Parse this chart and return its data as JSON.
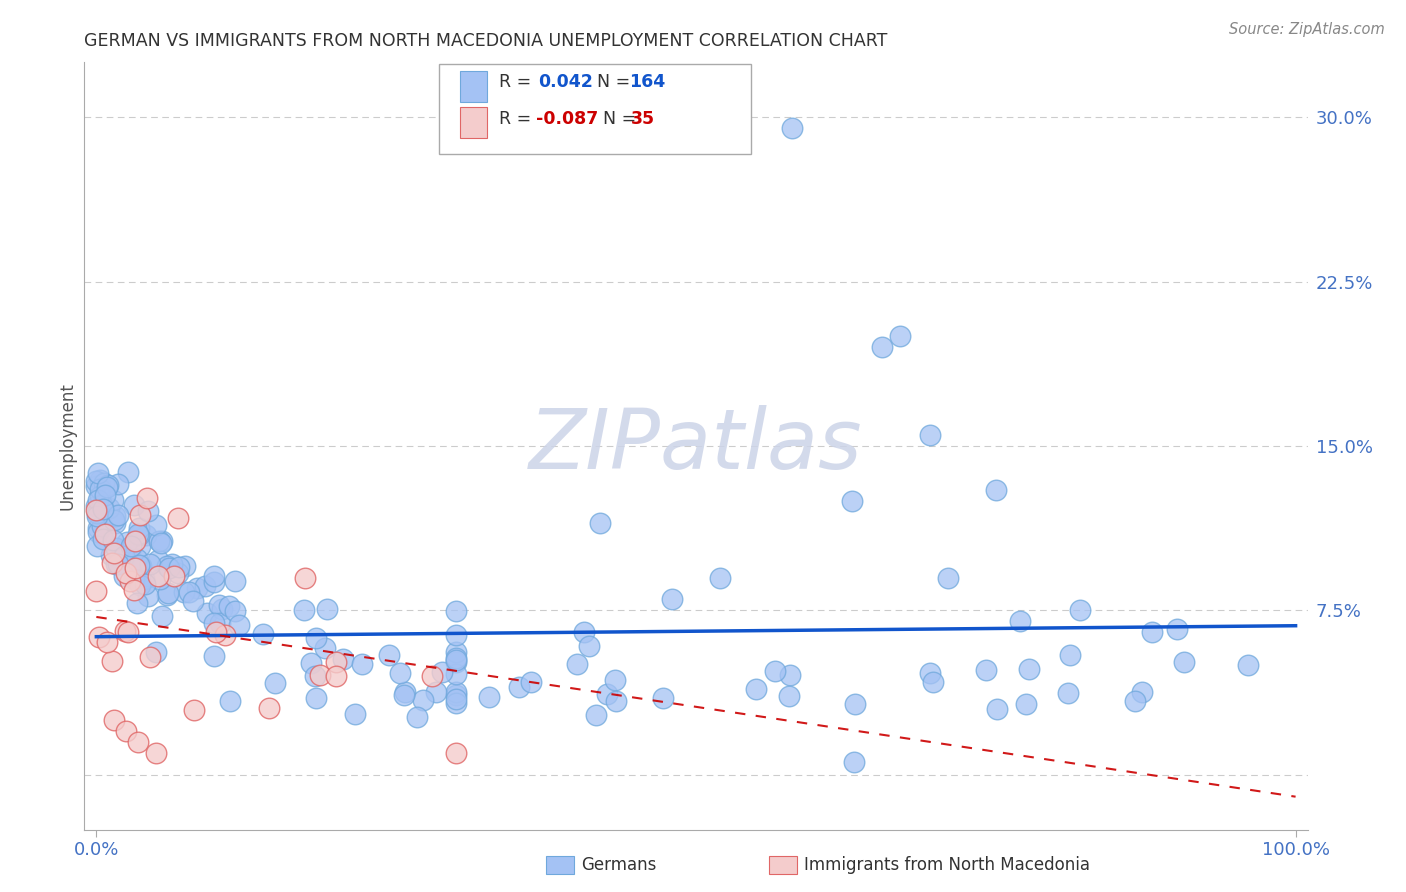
{
  "title": "GERMAN VS IMMIGRANTS FROM NORTH MACEDONIA UNEMPLOYMENT CORRELATION CHART",
  "source": "Source: ZipAtlas.com",
  "ylabel": "Unemployment",
  "xlim": [
    -0.01,
    1.01
  ],
  "ylim": [
    -0.025,
    0.325
  ],
  "yticks": [
    0.0,
    0.075,
    0.15,
    0.225,
    0.3
  ],
  "ytick_labels": [
    "",
    "7.5%",
    "15.0%",
    "22.5%",
    "30.0%"
  ],
  "xtick_positions": [
    0.0,
    1.0
  ],
  "xtick_labels": [
    "0.0%",
    "100.0%"
  ],
  "background_color": "#ffffff",
  "grid_color": "#cccccc",
  "title_color": "#444444",
  "axis_label_color": "#666666",
  "blue_color": "#a4c2f4",
  "blue_edge_color": "#6fa8dc",
  "pink_color": "#f4cccc",
  "pink_edge_color": "#e06666",
  "blue_line_color": "#1155cc",
  "pink_line_color": "#cc0000",
  "watermark_text": "ZIPatlas",
  "watermark_color": "#ccd4e8",
  "blue_n": 164,
  "pink_n": 35,
  "random_seed": 7,
  "legend_blue_r": "0.042",
  "legend_blue_n": "164",
  "legend_pink_r": "-0.087",
  "legend_pink_n": "35",
  "legend_color_r": "#1155cc",
  "legend_color_n": "#1155cc",
  "legend_pink_color_r": "#cc0000",
  "legend_pink_color_n": "#cc0000"
}
